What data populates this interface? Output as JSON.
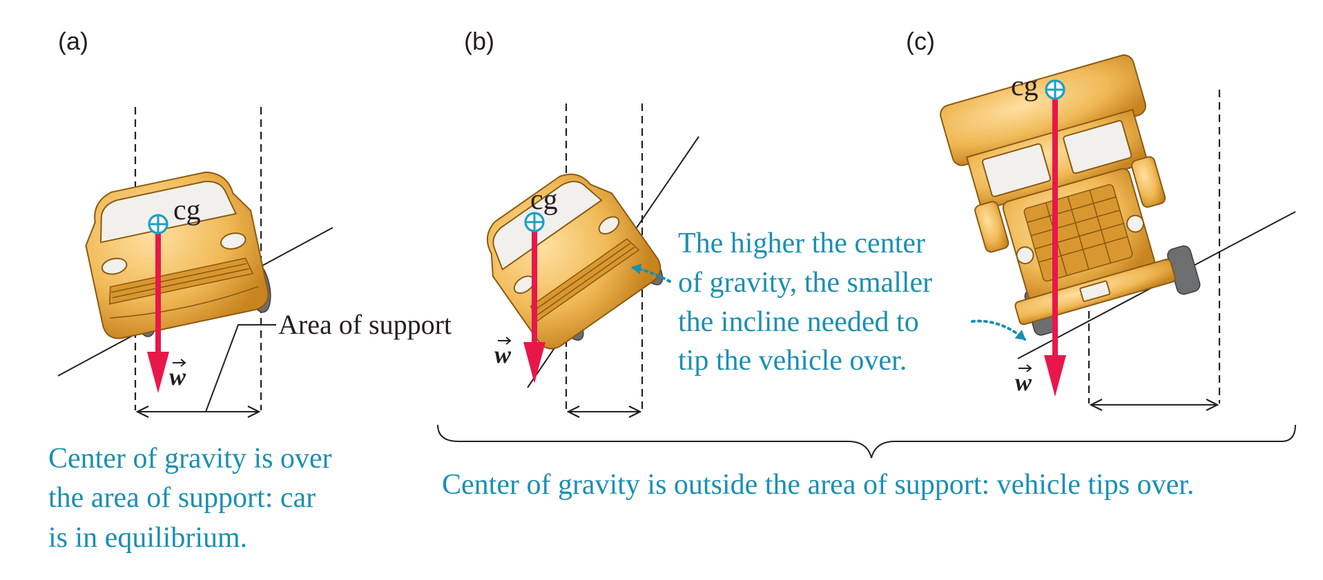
{
  "panels": {
    "a": {
      "label": "(a)",
      "cg_label": "cg",
      "weight_label": "w",
      "support_label": "Area of support",
      "caption_lines": [
        "Center of gravity is over",
        "the area of support: car",
        "is in equilibrium."
      ]
    },
    "b": {
      "label": "(b)",
      "cg_label": "cg",
      "weight_label": "w"
    },
    "c": {
      "label": "(c)",
      "cg_label": "cg",
      "weight_label": "w"
    }
  },
  "note_lines": [
    "The higher the center",
    "of gravity, the smaller",
    "the incline needed to",
    "tip the vehicle over."
  ],
  "bottom_caption": "Center of gravity is outside the area of support: vehicle tips over.",
  "colors": {
    "caption": "#1a8fb3",
    "weight_arrow": "#e8174a",
    "cg_marker": "#1a9fc7",
    "vehicle_body": "#f0b956",
    "text": "#231f20"
  },
  "icons": {
    "cg_marker": "circle-crosshair-icon",
    "weight": "down-arrow-icon",
    "support_width": "double-headed-arrow-icon"
  }
}
